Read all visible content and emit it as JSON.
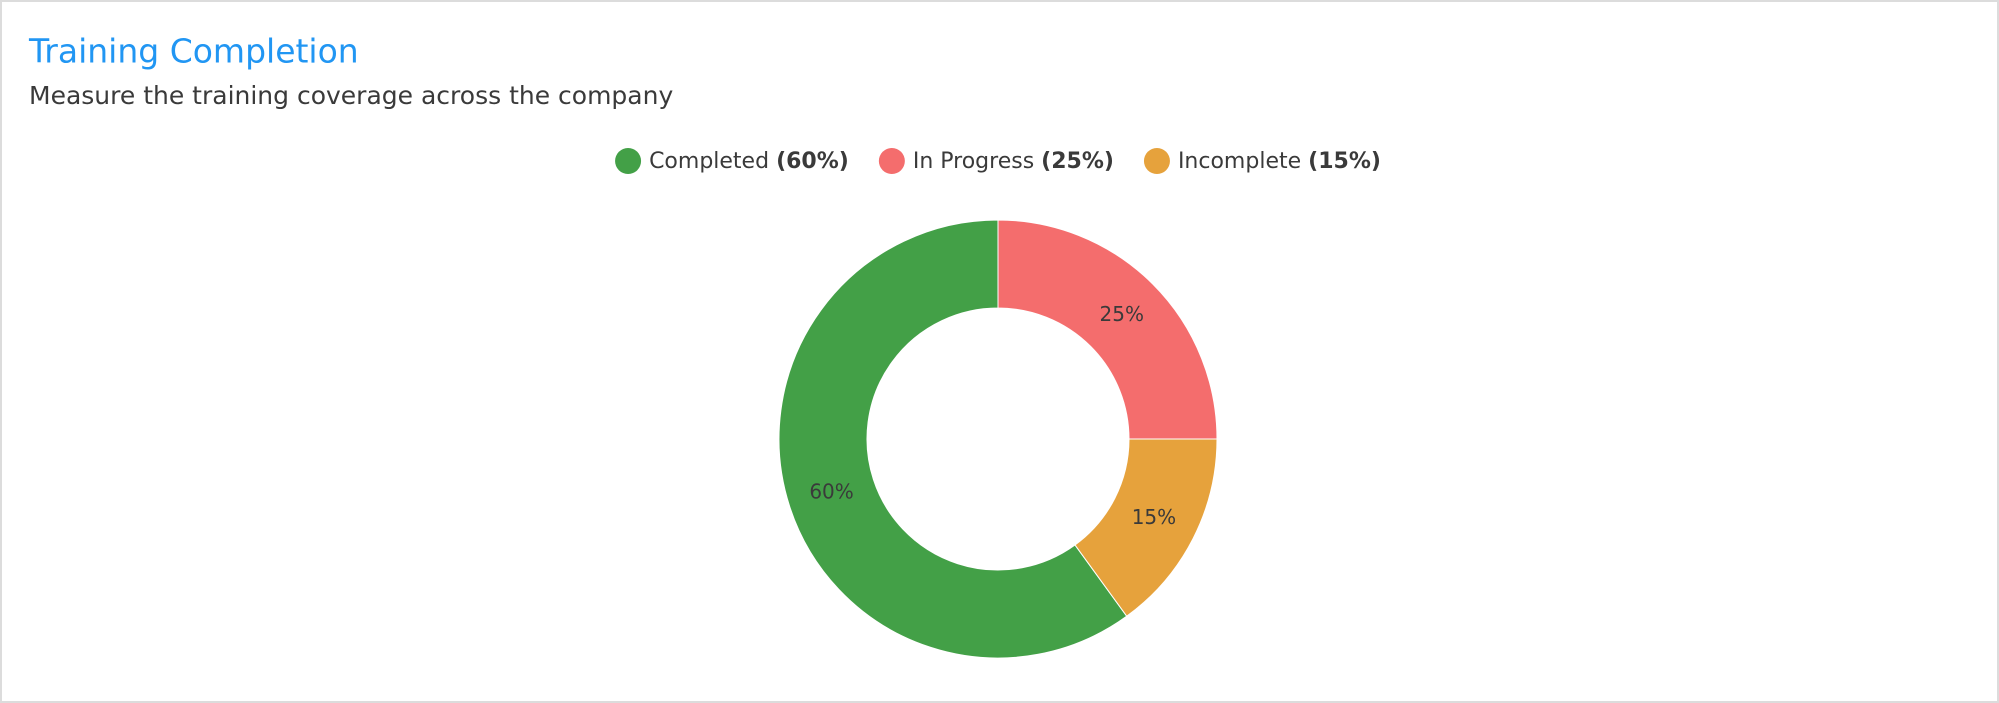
{
  "chart_data": {
    "type": "donut",
    "title": "Training Completion",
    "subtitle": "Measure the training coverage across the company",
    "categories": [
      "Completed",
      "In Progress",
      "Incomplete"
    ],
    "values": [
      60,
      25,
      15
    ],
    "value_labels": [
      "60%",
      "25%",
      "15%"
    ],
    "legend_value_labels": [
      "(60%)",
      "(25%)",
      "(15%)"
    ],
    "colors": [
      "#43a047",
      "#f46d6d",
      "#e6a23c"
    ],
    "legend": "top"
  }
}
